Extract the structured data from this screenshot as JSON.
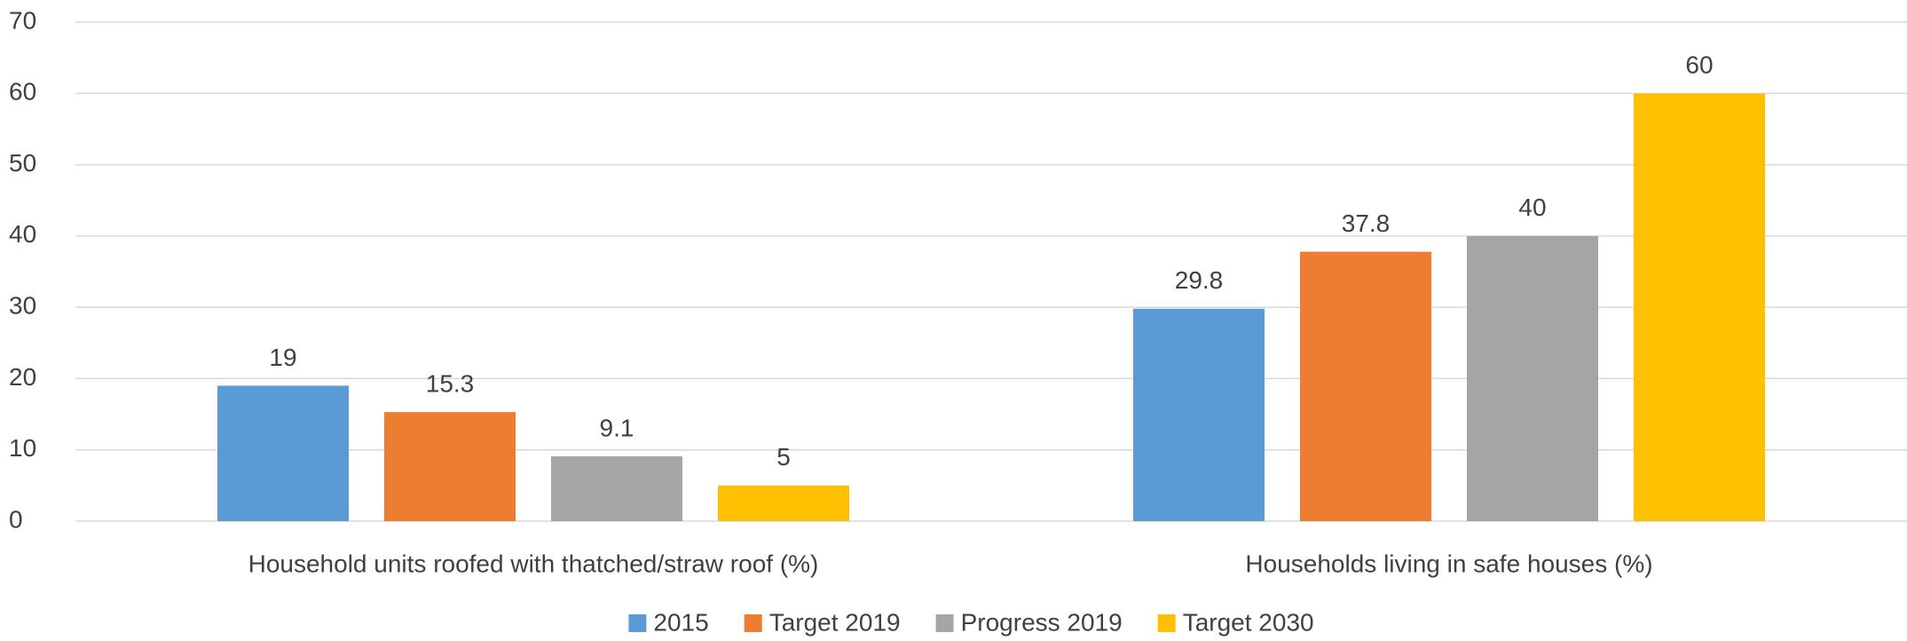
{
  "chart_data": {
    "type": "bar",
    "categories": [
      "Household units roofed with thatched/straw roof (%)",
      "Households living in safe houses (%)"
    ],
    "series": [
      {
        "name": "2015",
        "color": "#5b9bd5",
        "values": [
          19,
          29.8
        ]
      },
      {
        "name": "Target 2019",
        "color": "#ed7d31",
        "values": [
          15.3,
          37.8
        ]
      },
      {
        "name": "Progress 2019",
        "color": "#a5a5a5",
        "values": [
          9.1,
          40
        ]
      },
      {
        "name": "Target 2030",
        "color": "#ffc000",
        "values": [
          5,
          60
        ]
      }
    ],
    "ylim": [
      0,
      70
    ],
    "yticks": [
      0,
      10,
      20,
      30,
      40,
      50,
      60,
      70
    ],
    "grid": true,
    "legend": "bottom"
  }
}
